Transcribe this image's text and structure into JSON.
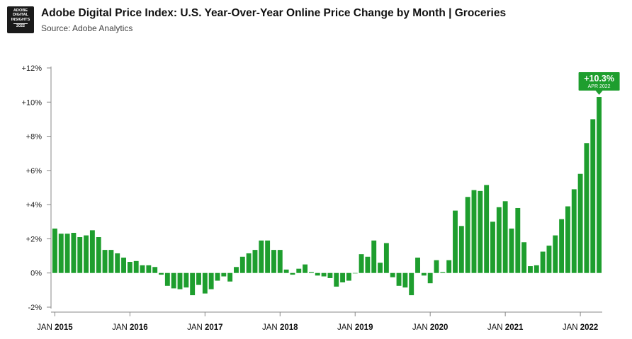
{
  "logo": {
    "line1": "ADOBE",
    "line2": "DIGITAL",
    "line3": "INSIGHTS",
    "year": "2022"
  },
  "header": {
    "title": "Adobe Digital Price Index: U.S. Year-Over-Year Online Price Change by Month  |  Groceries",
    "source": "Source: Adobe Analytics"
  },
  "colors": {
    "bar": "#1e9e2e",
    "callout": "#1e9e2e",
    "axis": "#888888",
    "grid": "#e6e6e6"
  },
  "chart_data": {
    "type": "bar",
    "title": "Adobe Digital Price Index: U.S. Year-Over-Year Online Price Change by Month | Groceries",
    "xlabel": "",
    "ylabel": "",
    "ylim": [
      -2,
      12
    ],
    "y_ticks": [
      {
        "value": 12,
        "label": "+12%"
      },
      {
        "value": 10,
        "label": "+10%"
      },
      {
        "value": 8,
        "label": "+8%"
      },
      {
        "value": 6,
        "label": "+6%"
      },
      {
        "value": 4,
        "label": "+4%"
      },
      {
        "value": 2,
        "label": "+2%"
      },
      {
        "value": 0,
        "label": "0%"
      },
      {
        "value": -2,
        "label": "-2%"
      }
    ],
    "x_ticks": [
      {
        "index": 0,
        "month": "JAN",
        "year": "2015"
      },
      {
        "index": 12,
        "month": "JAN",
        "year": "2016"
      },
      {
        "index": 24,
        "month": "JAN",
        "year": "2017"
      },
      {
        "index": 36,
        "month": "JAN",
        "year": "2018"
      },
      {
        "index": 48,
        "month": "JAN",
        "year": "2019"
      },
      {
        "index": 60,
        "month": "JAN",
        "year": "2020"
      },
      {
        "index": 72,
        "month": "JAN",
        "year": "2021"
      },
      {
        "index": 84,
        "month": "JAN",
        "year": "2022"
      }
    ],
    "start": "Jan 2015",
    "end": "Apr 2022",
    "values": [
      2.6,
      2.3,
      2.3,
      2.35,
      2.1,
      2.2,
      2.5,
      2.1,
      1.35,
      1.35,
      1.15,
      0.9,
      0.65,
      0.7,
      0.45,
      0.45,
      0.35,
      -0.1,
      -0.75,
      -0.9,
      -0.95,
      -0.85,
      -1.3,
      -0.7,
      -1.2,
      -0.95,
      -0.45,
      -0.2,
      -0.5,
      0.35,
      0.95,
      1.15,
      1.35,
      1.9,
      1.9,
      1.35,
      1.35,
      0.2,
      -0.1,
      0.25,
      0.5,
      0.05,
      -0.15,
      -0.2,
      -0.3,
      -0.8,
      -0.55,
      -0.45,
      0.0,
      1.1,
      0.95,
      1.9,
      0.6,
      1.75,
      -0.25,
      -0.75,
      -0.85,
      -1.3,
      0.9,
      -0.15,
      -0.6,
      0.75,
      0.05,
      0.75,
      3.65,
      2.75,
      4.45,
      4.85,
      4.8,
      5.15,
      3.0,
      3.85,
      4.2,
      2.6,
      3.8,
      1.8,
      0.4,
      0.45,
      1.25,
      1.6,
      2.2,
      3.15,
      3.9,
      4.9,
      5.8,
      7.6,
      9.0,
      10.3
    ],
    "annotation": {
      "index": 87,
      "value_label": "+10.3%",
      "date_label": "APR 2022"
    }
  }
}
